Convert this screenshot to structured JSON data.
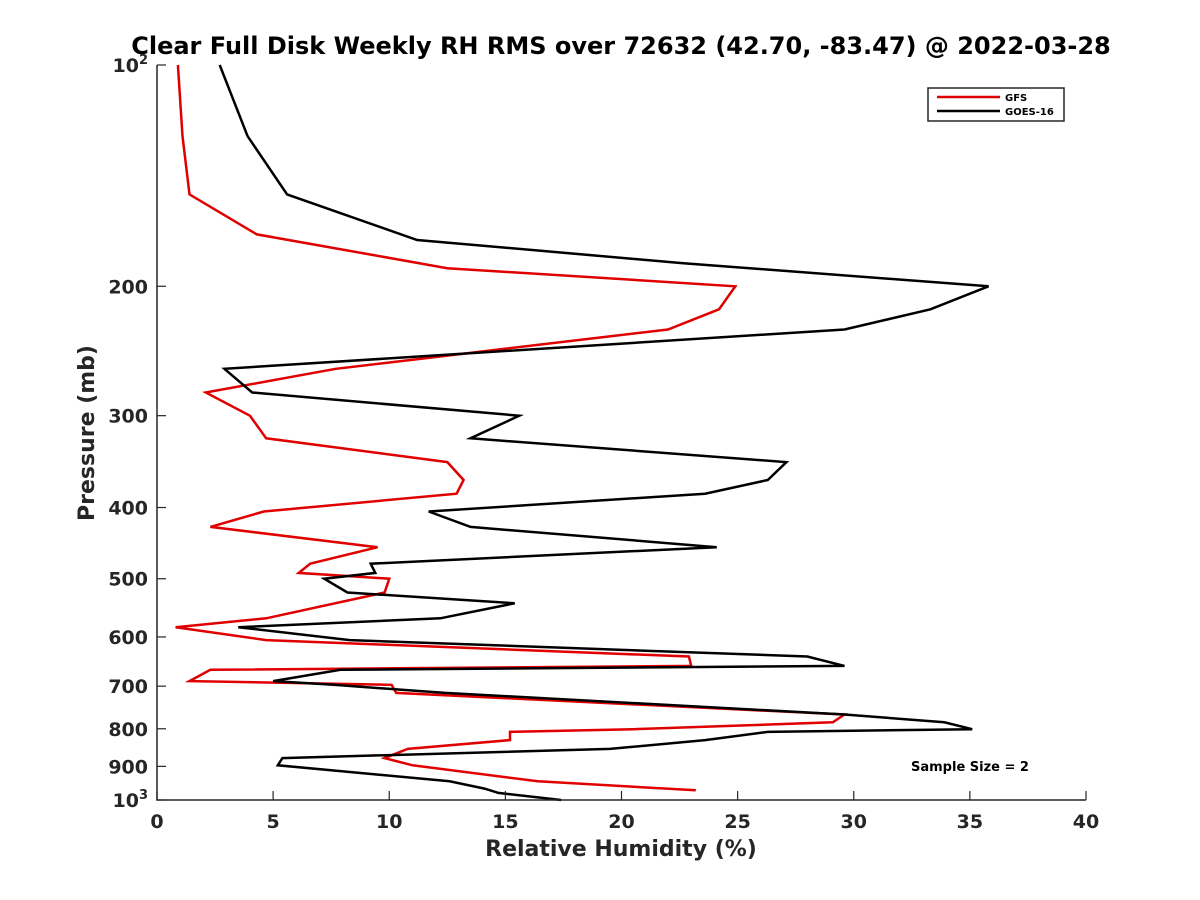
{
  "chart_data": {
    "type": "line",
    "title": "Clear Full Disk Weekly RH RMS over 72632 (42.70, -83.47) @ 2022-03-28",
    "xlabel": "Relative Humidity (%)",
    "ylabel": "Pressure (mb)",
    "xlim": [
      0,
      40
    ],
    "ylim": [
      100,
      1000
    ],
    "yscale": "log",
    "y_reversed": true,
    "x_ticks": [
      "0",
      "5",
      "10",
      "15",
      "20",
      "25",
      "30",
      "35",
      "40"
    ],
    "y_ticks": [
      {
        "value": 100,
        "label": "10",
        "sup": "2"
      },
      {
        "value": 200,
        "label": "200",
        "sup": ""
      },
      {
        "value": 300,
        "label": "300",
        "sup": ""
      },
      {
        "value": 400,
        "label": "400",
        "sup": ""
      },
      {
        "value": 500,
        "label": "500",
        "sup": ""
      },
      {
        "value": 600,
        "label": "600",
        "sup": ""
      },
      {
        "value": 700,
        "label": "700",
        "sup": ""
      },
      {
        "value": 800,
        "label": "800",
        "sup": ""
      },
      {
        "value": 900,
        "label": "900",
        "sup": ""
      },
      {
        "value": 1000,
        "label": "10",
        "sup": "3"
      }
    ],
    "grid": false,
    "legend_position": "top-right",
    "annotation": "Sample Size = 2",
    "series": [
      {
        "name": "GFS",
        "color": "#e00000",
        "points": [
          [
            0.9,
            100
          ],
          [
            1.1,
            125
          ],
          [
            1.4,
            150
          ],
          [
            4.3,
            170
          ],
          [
            12.5,
            189
          ],
          [
            24.9,
            200
          ],
          [
            24.2,
            215
          ],
          [
            22.0,
            229
          ],
          [
            7.7,
            259
          ],
          [
            2.1,
            279
          ],
          [
            4.0,
            300
          ],
          [
            4.7,
            322
          ],
          [
            12.5,
            347
          ],
          [
            13.2,
            367
          ],
          [
            12.9,
            383
          ],
          [
            4.6,
            405
          ],
          [
            2.3,
            425
          ],
          [
            9.5,
            453
          ],
          [
            6.6,
            477
          ],
          [
            6.1,
            491
          ],
          [
            10.0,
            500
          ],
          [
            9.8,
            522
          ],
          [
            4.7,
            566
          ],
          [
            0.8,
            582
          ],
          [
            4.7,
            606
          ],
          [
            22.9,
            638
          ],
          [
            23.0,
            657
          ],
          [
            2.3,
            665
          ],
          [
            1.4,
            689
          ],
          [
            10.1,
            697
          ],
          [
            10.3,
            715
          ],
          [
            29.6,
            765
          ],
          [
            29.1,
            784
          ],
          [
            20.5,
            801
          ],
          [
            15.2,
            808
          ],
          [
            15.2,
            829
          ],
          [
            10.8,
            852
          ],
          [
            9.8,
            877
          ],
          [
            11.0,
            897
          ],
          [
            16.4,
            943
          ],
          [
            23.2,
            970
          ]
        ]
      },
      {
        "name": "GOES-16",
        "color": "#000000",
        "points": [
          [
            2.7,
            100
          ],
          [
            3.9,
            125
          ],
          [
            5.6,
            150
          ],
          [
            11.2,
            173
          ],
          [
            22.6,
            186
          ],
          [
            35.8,
            200
          ],
          [
            33.3,
            215
          ],
          [
            29.6,
            229
          ],
          [
            2.9,
            259
          ],
          [
            4.1,
            279
          ],
          [
            15.6,
            300
          ],
          [
            13.5,
            322
          ],
          [
            27.1,
            347
          ],
          [
            26.3,
            367
          ],
          [
            23.6,
            383
          ],
          [
            11.7,
            405
          ],
          [
            13.5,
            425
          ],
          [
            24.1,
            453
          ],
          [
            9.2,
            477
          ],
          [
            9.4,
            491
          ],
          [
            7.2,
            500
          ],
          [
            8.2,
            522
          ],
          [
            15.4,
            540
          ],
          [
            12.2,
            566
          ],
          [
            3.5,
            582
          ],
          [
            8.3,
            606
          ],
          [
            28.0,
            638
          ],
          [
            29.6,
            657
          ],
          [
            7.9,
            665
          ],
          [
            5.0,
            689
          ],
          [
            7.6,
            697
          ],
          [
            12.4,
            715
          ],
          [
            29.6,
            765
          ],
          [
            33.9,
            784
          ],
          [
            35.1,
            801
          ],
          [
            26.3,
            808
          ],
          [
            23.6,
            829
          ],
          [
            19.5,
            852
          ],
          [
            5.4,
            877
          ],
          [
            5.2,
            897
          ],
          [
            12.6,
            943
          ],
          [
            14.1,
            965
          ],
          [
            14.7,
            978
          ],
          [
            17.4,
            1000
          ]
        ]
      }
    ]
  }
}
